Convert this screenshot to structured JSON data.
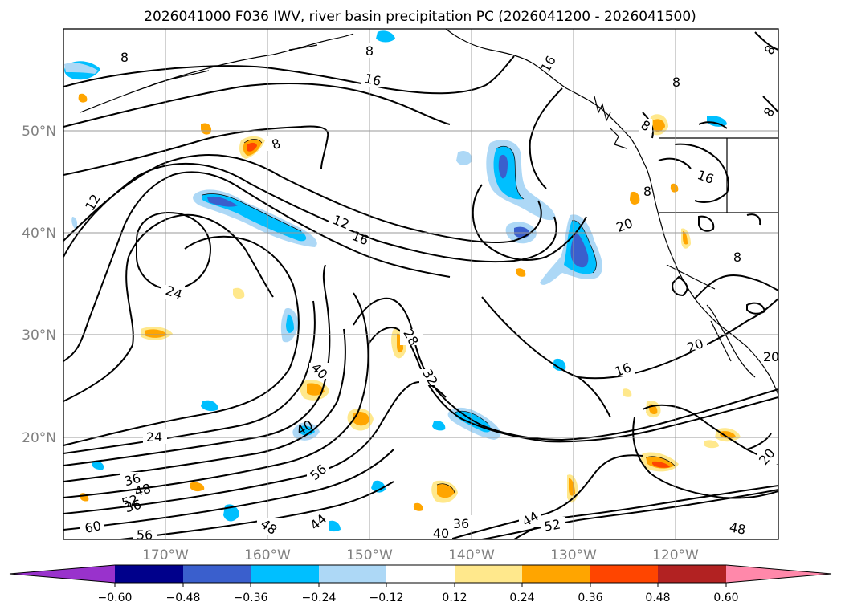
{
  "title": "2026041000 F036 IWV, river basin precipitation PC (2026041200 - 2026041500)",
  "map": {
    "lon_ticks": [
      "170°W",
      "160°W",
      "150°W",
      "140°W",
      "130°W",
      "120°W"
    ],
    "lat_ticks": [
      "50°N",
      "40°N",
      "30°N",
      "20°N"
    ],
    "grid": true,
    "contour_labels": [
      "8",
      "8",
      "16",
      "8",
      "12",
      "12",
      "16",
      "24",
      "16",
      "8",
      "20",
      "20",
      "28",
      "32",
      "40",
      "16",
      "20",
      "24",
      "40",
      "56",
      "36",
      "48",
      "52",
      "36",
      "60",
      "56",
      "48",
      "44",
      "40",
      "36",
      "44",
      "52",
      "48",
      "20",
      "8",
      "8",
      "8",
      "16",
      "8",
      "8"
    ]
  },
  "colorbar": {
    "ticks": [
      "−0.60",
      "−0.48",
      "−0.36",
      "−0.24",
      "−0.12",
      "0.12",
      "0.24",
      "0.36",
      "0.48",
      "0.60"
    ],
    "colors": [
      "#9932cc",
      "#00008b",
      "#3a5fcd",
      "#00bfff",
      "#add8f6",
      "#ffffff",
      "#ffe88c",
      "#ffa500",
      "#ff4500",
      "#b22222",
      "#ff88aa"
    ]
  },
  "chart_data": {
    "type": "heatmap",
    "title": "2026041000 F036 IWV, river basin precipitation PC (2026041200 - 2026041500)",
    "xlabel": "",
    "ylabel": "",
    "x_ticks": [
      "170°W",
      "160°W",
      "150°W",
      "140°W",
      "130°W",
      "120°W"
    ],
    "y_ticks": [
      "50°N",
      "40°N",
      "30°N",
      "20°N"
    ],
    "xlim": [
      -180,
      -110
    ],
    "ylim": [
      10,
      60
    ],
    "contour_levels": [
      8,
      12,
      16,
      20,
      24,
      28,
      32,
      36,
      40,
      44,
      48,
      52,
      56,
      60
    ],
    "colorbar_levels": [
      -0.6,
      -0.48,
      -0.36,
      -0.24,
      -0.12,
      0.12,
      0.24,
      0.36,
      0.48,
      0.6
    ],
    "grid": true
  }
}
